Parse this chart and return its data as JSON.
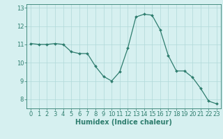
{
  "x": [
    0,
    1,
    2,
    3,
    4,
    5,
    6,
    7,
    8,
    9,
    10,
    11,
    12,
    13,
    14,
    15,
    16,
    17,
    18,
    19,
    20,
    21,
    22,
    23
  ],
  "y": [
    11.05,
    11.0,
    11.0,
    11.05,
    11.0,
    10.6,
    10.5,
    10.5,
    9.8,
    9.25,
    9.0,
    9.5,
    10.8,
    12.5,
    12.65,
    12.6,
    11.8,
    10.4,
    9.55,
    9.55,
    9.2,
    8.6,
    7.9,
    7.75
  ],
  "line_color": "#2e7d6e",
  "marker": "D",
  "marker_size": 2.0,
  "bg_color": "#d6f0f0",
  "grid_color": "#b0d8d8",
  "xlabel": "Humidex (Indice chaleur)",
  "xlabel_fontsize": 7,
  "tick_fontsize": 6,
  "ylim": [
    7.5,
    13.2
  ],
  "xlim": [
    -0.5,
    23.5
  ],
  "yticks": [
    8,
    9,
    10,
    11,
    12,
    13
  ],
  "xticks": [
    0,
    1,
    2,
    3,
    4,
    5,
    6,
    7,
    8,
    9,
    10,
    11,
    12,
    13,
    14,
    15,
    16,
    17,
    18,
    19,
    20,
    21,
    22,
    23
  ]
}
